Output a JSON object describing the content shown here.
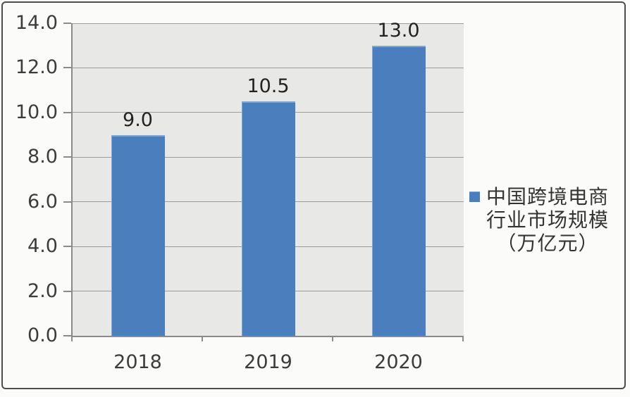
{
  "chart_data": {
    "type": "bar",
    "title": "",
    "categories": [
      "2018",
      "2019",
      "2020"
    ],
    "values": [
      9.0,
      10.5,
      13.0
    ],
    "value_labels": [
      "9.0",
      "10.5",
      "13.0"
    ],
    "ylim": [
      0,
      14
    ],
    "y_tick_step": 2,
    "y_tick_labels": [
      "0.0",
      "2.0",
      "4.0",
      "6.0",
      "8.0",
      "10.0",
      "12.0",
      "14.0"
    ],
    "xlabel": "",
    "ylabel": "",
    "grid": true,
    "legend": {
      "position": "right",
      "entries": [
        {
          "marker": "square",
          "label": "中国跨境电商行业市场规模（万亿元）",
          "lines": [
            "中国跨境电商",
            "行业市场规模",
            "（万亿元）"
          ]
        }
      ]
    },
    "colors": {
      "bar_fill": "#4a7ebc",
      "bar_highlight": "#7ea6d5",
      "plot_background": "#e8e8e6",
      "gridline": "#9d9d9d",
      "axis_line": "#8a8a8a",
      "label_text": "#3c3c3c",
      "value_text": "#222222",
      "legend_text": "#343434",
      "page_background": "#fbfbf9",
      "frame_border": "#4d4d4d"
    }
  }
}
